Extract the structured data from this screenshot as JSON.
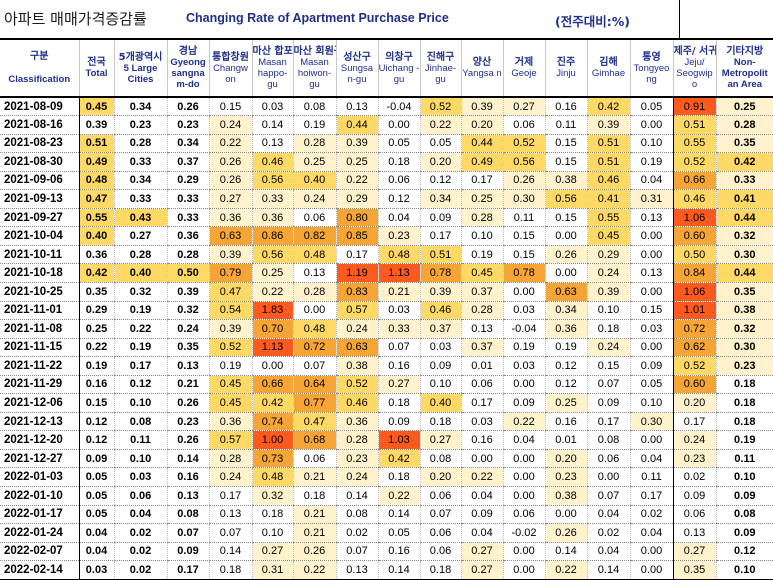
{
  "title": {
    "korean": "아파트 매매가격증감률",
    "english": "Changing Rate of Apartment Purchase Price",
    "unit": "(전주대비:%)"
  },
  "columns": [
    {
      "key": "classification",
      "ko": "구분",
      "en": "Classification"
    },
    {
      "key": "total",
      "ko": "전국",
      "en": "Total"
    },
    {
      "key": "large5",
      "ko": "5개광역시",
      "en": "5 Large Cities"
    },
    {
      "key": "gyeongnam",
      "ko": "경남",
      "en": "Gyeong sangna m-do"
    },
    {
      "key": "changwon",
      "ko": "통합창원",
      "en": "Changw on"
    },
    {
      "key": "masanhappo",
      "ko": "마산 합포구",
      "en": "Masan happo-gu"
    },
    {
      "key": "masanhoiwon",
      "ko": "마산 회원구",
      "en": "Masan hoiwon-gu"
    },
    {
      "key": "sungsan",
      "ko": "성산구",
      "en": "Sungsa n-gu"
    },
    {
      "key": "uichang",
      "ko": "의창구",
      "en": "Uichang -gu"
    },
    {
      "key": "jinhae",
      "ko": "진해구",
      "en": "Jinhae-gu"
    },
    {
      "key": "yangsan",
      "ko": "양산",
      "en": "Yangsa n"
    },
    {
      "key": "geoje",
      "ko": "거제",
      "en": "Geoje"
    },
    {
      "key": "jinju",
      "ko": "진주",
      "en": "Jinju"
    },
    {
      "key": "gimhae",
      "ko": "김해",
      "en": "Gimhae"
    },
    {
      "key": "tongyeong",
      "ko": "통영",
      "en": "Tongyeo ng"
    },
    {
      "key": "jeju",
      "ko": "제주/ 서귀포",
      "en": "Jeju/ Seogwip o"
    },
    {
      "key": "nonmetro",
      "ko": "기타지방",
      "en": "Non- Metropolit an Area"
    }
  ],
  "rows": [
    {
      "date": "2021-08-09",
      "values": [
        "0.45",
        "0.34",
        "0.26",
        "0.15",
        "0.03",
        "0.08",
        "0.13",
        "-0.04",
        "0.52",
        "0.39",
        "0.27",
        "0.16",
        "0.42",
        "0.05",
        "0.91",
        "0.25"
      ]
    },
    {
      "date": "2021-08-16",
      "values": [
        "0.39",
        "0.23",
        "0.23",
        "0.24",
        "0.14",
        "0.19",
        "0.44",
        "0.00",
        "0.22",
        "0.20",
        "0.06",
        "0.11",
        "0.39",
        "0.00",
        "0.51",
        "0.28"
      ]
    },
    {
      "date": "2021-08-23",
      "values": [
        "0.51",
        "0.28",
        "0.34",
        "0.22",
        "0.13",
        "0.28",
        "0.39",
        "0.05",
        "0.05",
        "0.44",
        "0.52",
        "0.15",
        "0.51",
        "0.10",
        "0.55",
        "0.35"
      ]
    },
    {
      "date": "2021-08-30",
      "values": [
        "0.49",
        "0.33",
        "0.37",
        "0.26",
        "0.46",
        "0.25",
        "0.25",
        "0.18",
        "0.20",
        "0.49",
        "0.56",
        "0.15",
        "0.51",
        "0.19",
        "0.52",
        "0.42"
      ]
    },
    {
      "date": "2021-09-06",
      "values": [
        "0.48",
        "0.34",
        "0.29",
        "0.26",
        "0.56",
        "0.40",
        "0.22",
        "0.06",
        "0.12",
        "0.17",
        "0.26",
        "0.38",
        "0.46",
        "0.04",
        "0.66",
        "0.33"
      ]
    },
    {
      "date": "2021-09-13",
      "values": [
        "0.47",
        "0.33",
        "0.33",
        "0.27",
        "0.33",
        "0.24",
        "0.29",
        "0.12",
        "0.34",
        "0.25",
        "0.30",
        "0.56",
        "0.41",
        "0.31",
        "0.46",
        "0.41"
      ]
    },
    {
      "date": "2021-09-27",
      "values": [
        "0.55",
        "0.43",
        "0.33",
        "0.36",
        "0.36",
        "0.06",
        "0.80",
        "0.04",
        "0.09",
        "0.28",
        "0.11",
        "0.15",
        "0.55",
        "0.13",
        "1.06",
        "0.44"
      ]
    },
    {
      "date": "2021-10-04",
      "values": [
        "0.40",
        "0.27",
        "0.36",
        "0.63",
        "0.86",
        "0.82",
        "0.85",
        "0.23",
        "0.17",
        "0.10",
        "0.15",
        "0.00",
        "0.45",
        "0.00",
        "0.60",
        "0.32"
      ]
    },
    {
      "date": "2021-10-11",
      "values": [
        "0.36",
        "0.28",
        "0.28",
        "0.39",
        "0.56",
        "0.48",
        "0.17",
        "0.48",
        "0.51",
        "0.19",
        "0.15",
        "0.26",
        "0.29",
        "0.00",
        "0.50",
        "0.30"
      ]
    },
    {
      "date": "2021-10-18",
      "values": [
        "0.42",
        "0.40",
        "0.50",
        "0.79",
        "0.25",
        "0.13",
        "1.19",
        "1.13",
        "0.78",
        "0.45",
        "0.78",
        "0.00",
        "0.24",
        "0.13",
        "0.84",
        "0.44"
      ]
    },
    {
      "date": "2021-10-25",
      "values": [
        "0.35",
        "0.32",
        "0.39",
        "0.47",
        "0.22",
        "0.28",
        "0.83",
        "0.21",
        "0.39",
        "0.37",
        "0.00",
        "0.63",
        "0.39",
        "0.00",
        "1.06",
        "0.35"
      ]
    },
    {
      "date": "2021-11-01",
      "values": [
        "0.29",
        "0.19",
        "0.32",
        "0.54",
        "1.83",
        "0.00",
        "0.57",
        "0.03",
        "0.46",
        "0.28",
        "0.03",
        "0.34",
        "0.10",
        "0.15",
        "1.01",
        "0.38"
      ]
    },
    {
      "date": "2021-11-08",
      "values": [
        "0.25",
        "0.22",
        "0.24",
        "0.39",
        "0.70",
        "0.48",
        "0.24",
        "0.33",
        "0.37",
        "0.13",
        "-0.04",
        "0.36",
        "0.18",
        "0.03",
        "0.72",
        "0.32"
      ]
    },
    {
      "date": "2021-11-15",
      "values": [
        "0.22",
        "0.19",
        "0.35",
        "0.52",
        "1.13",
        "0.72",
        "0.63",
        "0.07",
        "0.03",
        "0.37",
        "0.19",
        "0.19",
        "0.24",
        "0.00",
        "0.62",
        "0.30"
      ]
    },
    {
      "date": "2021-11-22",
      "values": [
        "0.19",
        "0.17",
        "0.13",
        "0.19",
        "0.00",
        "0.07",
        "0.38",
        "0.16",
        "0.09",
        "0.01",
        "0.03",
        "0.12",
        "0.15",
        "0.09",
        "0.52",
        "0.23"
      ]
    },
    {
      "date": "2021-11-29",
      "values": [
        "0.16",
        "0.12",
        "0.21",
        "0.45",
        "0.66",
        "0.64",
        "0.52",
        "0.27",
        "0.10",
        "0.06",
        "0.00",
        "0.12",
        "0.07",
        "0.05",
        "0.60",
        "0.18"
      ]
    },
    {
      "date": "2021-12-06",
      "values": [
        "0.15",
        "0.10",
        "0.26",
        "0.45",
        "0.42",
        "0.77",
        "0.46",
        "0.18",
        "0.40",
        "0.17",
        "0.09",
        "0.25",
        "0.09",
        "0.10",
        "0.20",
        "0.18"
      ]
    },
    {
      "date": "2021-12-13",
      "values": [
        "0.12",
        "0.08",
        "0.23",
        "0.36",
        "0.74",
        "0.47",
        "0.36",
        "0.09",
        "0.18",
        "0.03",
        "0.22",
        "0.16",
        "0.17",
        "0.30",
        "0.17",
        "0.18"
      ]
    },
    {
      "date": "2021-12-20",
      "values": [
        "0.12",
        "0.11",
        "0.26",
        "0.57",
        "1.00",
        "0.68",
        "0.28",
        "1.03",
        "0.27",
        "0.16",
        "0.04",
        "0.01",
        "0.08",
        "0.00",
        "0.24",
        "0.19"
      ]
    },
    {
      "date": "2021-12-27",
      "values": [
        "0.09",
        "0.10",
        "0.14",
        "0.28",
        "0.73",
        "0.06",
        "0.23",
        "0.42",
        "0.08",
        "0.00",
        "0.00",
        "0.20",
        "0.06",
        "0.04",
        "0.23",
        "0.11"
      ]
    },
    {
      "date": "2022-01-03",
      "values": [
        "0.05",
        "0.03",
        "0.16",
        "0.24",
        "0.48",
        "0.21",
        "0.24",
        "0.18",
        "0.20",
        "0.22",
        "0.00",
        "0.23",
        "0.00",
        "0.11",
        "0.02",
        "0.10"
      ]
    },
    {
      "date": "2022-01-10",
      "values": [
        "0.05",
        "0.06",
        "0.13",
        "0.17",
        "0.32",
        "0.18",
        "0.14",
        "0.22",
        "0.06",
        "0.04",
        "0.00",
        "0.38",
        "0.07",
        "0.17",
        "0.09",
        "0.09"
      ]
    },
    {
      "date": "2022-01-17",
      "values": [
        "0.05",
        "0.04",
        "0.08",
        "0.13",
        "0.18",
        "0.21",
        "0.08",
        "0.14",
        "0.07",
        "0.09",
        "0.06",
        "0.00",
        "0.04",
        "0.02",
        "0.06",
        "0.08"
      ]
    },
    {
      "date": "2022-01-24",
      "values": [
        "0.04",
        "0.02",
        "0.07",
        "0.07",
        "0.10",
        "0.21",
        "0.02",
        "0.05",
        "0.06",
        "0.04",
        "-0.02",
        "0.26",
        "0.02",
        "0.04",
        "0.13",
        "0.09"
      ]
    },
    {
      "date": "2022-02-07",
      "values": [
        "0.04",
        "0.02",
        "0.09",
        "0.14",
        "0.27",
        "0.26",
        "0.07",
        "0.16",
        "0.06",
        "0.27",
        "0.00",
        "0.14",
        "0.04",
        "0.00",
        "0.27",
        "0.12"
      ]
    },
    {
      "date": "2022-02-14",
      "values": [
        "0.03",
        "0.02",
        "0.17",
        "0.18",
        "0.31",
        "0.22",
        "0.13",
        "0.14",
        "0.18",
        "0.27",
        "0.00",
        "0.22",
        "0.14",
        "0.00",
        "0.35",
        "0.10"
      ]
    }
  ],
  "colors": {
    "header_text": "#1f2f8c",
    "low": "#fff2cc",
    "mid": "#ffd966",
    "high": "#f4a535",
    "highest": "#ff5a1e"
  }
}
